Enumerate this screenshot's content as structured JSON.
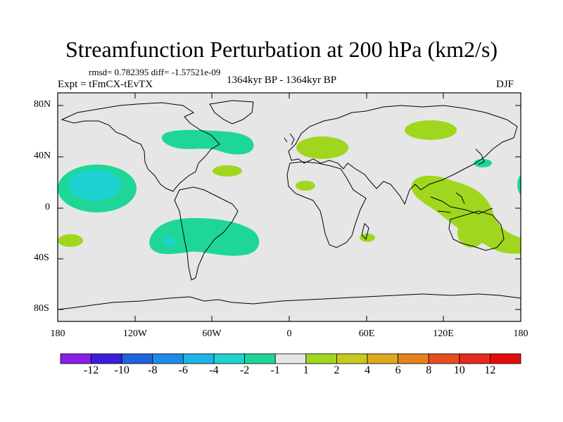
{
  "title": "Streamfunction Perturbation at 200 hPa (km2/s)",
  "stats": "rmsd= 0.782395 diff= -1.57521e-09",
  "experiment": "Expt = tFmCX-tEvTX",
  "period": "1364kyr BP - 1364kyr BP",
  "season": "DJF",
  "y_ticks": [
    "80N",
    "40N",
    "0",
    "40S",
    "80S"
  ],
  "x_ticks": [
    "180",
    "120W",
    "60W",
    "0",
    "60E",
    "120E",
    "180"
  ],
  "colorbar": {
    "labels": [
      "-12",
      "-10",
      "-8",
      "-6",
      "-4",
      "-2",
      "-1",
      "1",
      "2",
      "4",
      "6",
      "8",
      "10",
      "12"
    ],
    "colors": [
      "#8a1ee6",
      "#3a1ed8",
      "#1e64dc",
      "#1e8ce6",
      "#1eb4e6",
      "#1ed2d2",
      "#1ed796",
      "#e6e6e6",
      "#a0d71e",
      "#c8c81e",
      "#dcaa1e",
      "#e6821e",
      "#e6501e",
      "#e62a1e",
      "#e60a0a"
    ]
  },
  "background_color": "#e6e6e6",
  "land_outline_color": "#000000"
}
